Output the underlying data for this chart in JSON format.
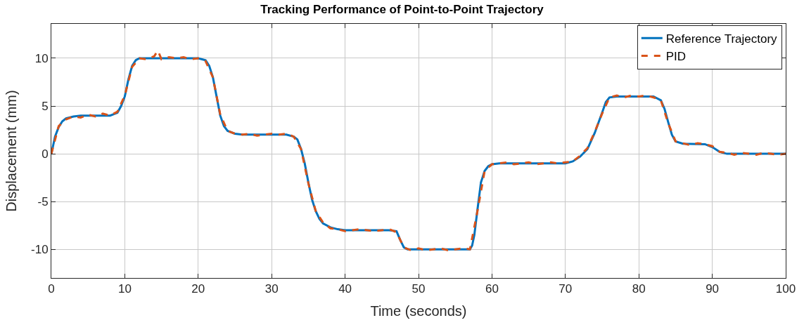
{
  "chart_data": {
    "type": "line",
    "title": "Tracking Performance of Point-to-Point Trajectory",
    "xlabel": "Time (seconds)",
    "ylabel": "Displacement (mm)",
    "xlim": [
      0,
      100
    ],
    "xticks": [
      0,
      10,
      20,
      30,
      40,
      50,
      60,
      70,
      80,
      90,
      100
    ],
    "ylim": [
      -13,
      13.6
    ],
    "yticks": [
      -10,
      -5,
      0,
      5,
      10
    ],
    "grid": true,
    "legend": "top right",
    "series": [
      {
        "name": "Reference Trajectory",
        "color": "#0072bd",
        "line_style": "solid",
        "x": [
          0,
          0.5,
          1,
          1.5,
          2,
          3,
          4,
          8,
          9,
          9.5,
          10,
          10.5,
          11,
          11.5,
          12,
          20,
          21,
          21.5,
          22,
          22.5,
          23,
          23.5,
          24,
          25,
          26,
          32,
          33,
          33.5,
          34,
          34.5,
          35,
          35.5,
          36,
          36.5,
          37,
          38,
          39,
          40,
          46,
          47,
          47.5,
          48,
          48.5,
          57,
          57.3,
          57.6,
          58,
          58.5,
          59,
          59.5,
          60,
          61,
          70,
          71,
          72,
          73,
          74,
          75,
          75.5,
          76,
          77,
          82,
          83,
          83.5,
          84,
          84.5,
          85,
          86,
          89,
          90,
          91,
          92,
          100
        ],
        "values": [
          0,
          1.8,
          2.8,
          3.4,
          3.7,
          3.9,
          4,
          4,
          4.3,
          5,
          6,
          7.8,
          9.2,
          9.8,
          10,
          10,
          9.8,
          9.2,
          8,
          6,
          4,
          2.9,
          2.4,
          2.1,
          2,
          2,
          1.8,
          1.5,
          0.5,
          -1,
          -3,
          -4.8,
          -6,
          -6.8,
          -7.3,
          -7.7,
          -7.9,
          -8,
          -8,
          -8.1,
          -9,
          -9.8,
          -10,
          -10,
          -9.6,
          -8.5,
          -6,
          -3,
          -1.8,
          -1.3,
          -1.1,
          -1,
          -1,
          -0.8,
          -0.3,
          0.5,
          2.2,
          4.3,
          5.4,
          5.9,
          6,
          6,
          5.6,
          4.7,
          3.3,
          2,
          1.3,
          1.05,
          1,
          0.7,
          0.2,
          0,
          0
        ]
      },
      {
        "name": "PID",
        "color": "#d95319",
        "line_style": "dashed",
        "x": [
          0,
          1,
          2,
          3,
          4,
          5,
          6,
          7,
          8,
          9,
          10,
          11,
          12,
          13,
          14,
          14.5,
          15,
          16,
          17,
          18,
          19,
          20,
          21,
          22,
          23,
          24,
          25,
          26,
          27,
          28,
          29,
          30,
          31,
          32,
          33,
          34,
          35,
          36,
          37,
          38,
          39,
          40,
          41,
          42,
          43,
          44,
          45,
          46,
          47,
          48,
          49,
          50,
          51,
          52,
          53,
          54,
          55,
          56,
          57,
          58,
          59,
          60,
          61,
          62,
          63,
          64,
          65,
          66,
          67,
          68,
          69,
          70,
          71,
          72,
          73,
          74,
          75,
          76,
          77,
          78,
          79,
          80,
          81,
          82,
          83,
          84,
          85,
          86,
          87,
          88,
          89,
          90,
          91,
          92,
          93,
          94,
          95,
          96,
          97,
          98,
          99,
          100
        ],
        "values": [
          0,
          2.9,
          3.6,
          3.9,
          3.8,
          4.1,
          3.9,
          4.2,
          4.0,
          4.4,
          6.1,
          9.1,
          10.0,
          9.9,
          10.2,
          10.8,
          9.9,
          10.1,
          10.0,
          10.1,
          9.9,
          10.0,
          9.7,
          8.0,
          4.1,
          2.4,
          2.1,
          2.0,
          2.1,
          1.9,
          2.0,
          2.1,
          2.0,
          2.1,
          1.8,
          0.5,
          -3.1,
          -6.0,
          -7.2,
          -7.8,
          -7.9,
          -8.1,
          -8.0,
          -7.9,
          -8.0,
          -8.1,
          -8.0,
          -7.9,
          -8.2,
          -9.8,
          -10.1,
          -9.9,
          -10.1,
          -10.0,
          -9.9,
          -10.1,
          -10.0,
          -9.9,
          -10.0,
          -6.1,
          -1.8,
          -1.1,
          -1.0,
          -0.9,
          -1.1,
          -1.0,
          -0.9,
          -1.1,
          -1.0,
          -0.9,
          -1.0,
          -0.9,
          -0.8,
          -0.2,
          0.6,
          2.3,
          4.2,
          5.9,
          6.1,
          5.9,
          6.1,
          6.0,
          6.1,
          5.9,
          5.6,
          3.2,
          1.3,
          1.1,
          0.9,
          1.1,
          1.0,
          0.8,
          0.2,
          0.1,
          -0.1,
          0.1,
          0.0,
          -0.1,
          0.1,
          0.0,
          -0.1,
          0.0
        ]
      }
    ]
  }
}
